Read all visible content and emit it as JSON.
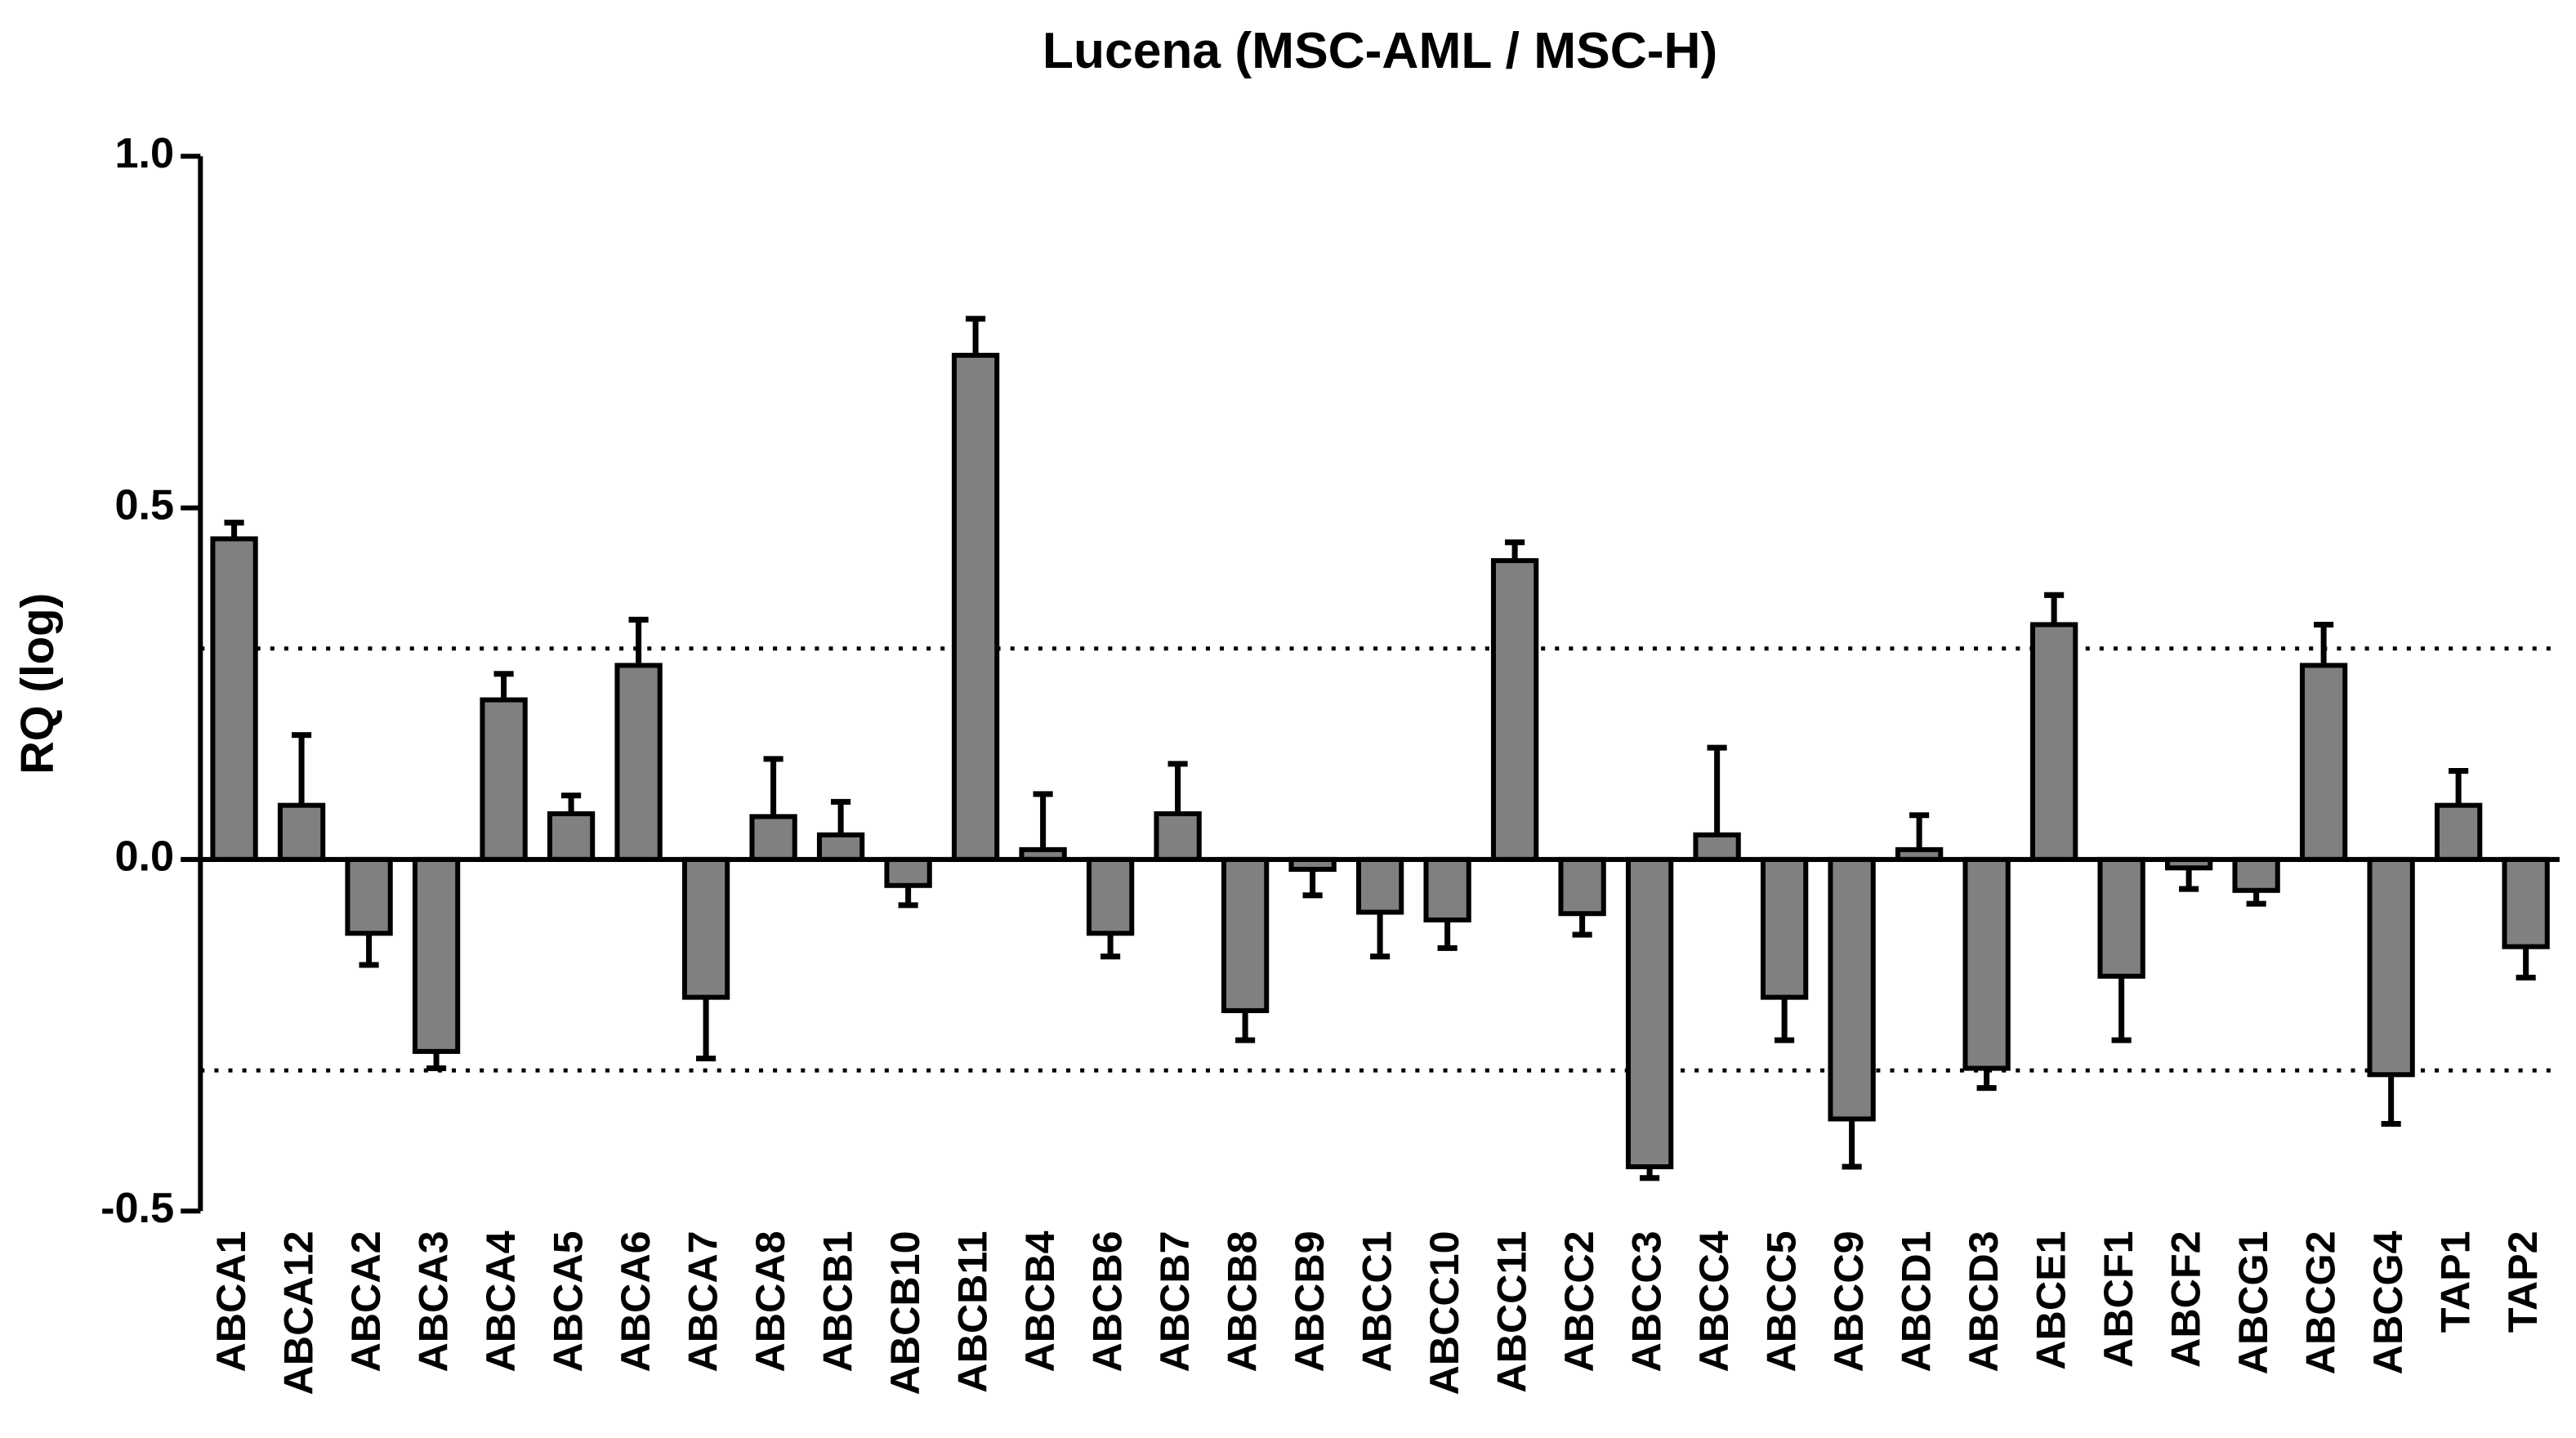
{
  "chart_data": {
    "type": "bar",
    "title": "Lucena (MSC-AML / MSC-H)",
    "y_label": "RQ (log)",
    "categories": [
      "ABCA1",
      "ABCA12",
      "ABCA2",
      "ABCA3",
      "ABCA4",
      "ABCA5",
      "ABCA6",
      "ABCA7",
      "ABCA8",
      "ABCB1",
      "ABCB10",
      "ABCB11",
      "ABCB4",
      "ABCB6",
      "ABCB7",
      "ABCB8",
      "ABCB9",
      "ABCC1",
      "ABCC10",
      "ABCC11",
      "ABCC2",
      "ABCC3",
      "ABCC4",
      "ABCC5",
      "ABCC9",
      "ABCD1",
      "ABCD3",
      "ABCE1",
      "ABCF1",
      "ABCF2",
      "ABCG1",
      "ABCG2",
      "ABCG4",
      "TAP1",
      "TAP2"
    ],
    "values": [
      0.456,
      0.077,
      -0.105,
      -0.273,
      0.227,
      0.065,
      0.276,
      -0.196,
      0.061,
      0.035,
      -0.037,
      0.717,
      0.014,
      -0.105,
      0.065,
      -0.215,
      -0.014,
      -0.075,
      -0.086,
      0.425,
      -0.077,
      -0.437,
      0.035,
      -0.196,
      -0.369,
      0.014,
      -0.297,
      0.334,
      -0.166,
      -0.012,
      -0.044,
      0.276,
      -0.306,
      0.077,
      -0.124
    ],
    "errors": [
      0.023,
      0.1,
      0.045,
      0.024,
      0.037,
      0.026,
      0.065,
      0.087,
      0.082,
      0.047,
      0.028,
      0.052,
      0.079,
      0.033,
      0.071,
      0.042,
      0.037,
      0.063,
      0.04,
      0.026,
      0.03,
      0.016,
      0.124,
      0.061,
      0.068,
      0.049,
      0.028,
      0.042,
      0.091,
      0.03,
      0.019,
      0.058,
      0.07,
      0.049,
      0.044
    ],
    "color": "#808080",
    "ylim": [
      -0.5,
      1.0
    ],
    "yticks": [
      {
        "value": -0.5,
        "label": "-0.5"
      },
      {
        "value": 0,
        "label": "0.0"
      },
      {
        "value": 0.5,
        "label": "0.5"
      },
      {
        "value": 1,
        "label": "1.0"
      }
    ],
    "reference_lines": [
      0.3,
      -0.3
    ],
    "grid": false
  }
}
